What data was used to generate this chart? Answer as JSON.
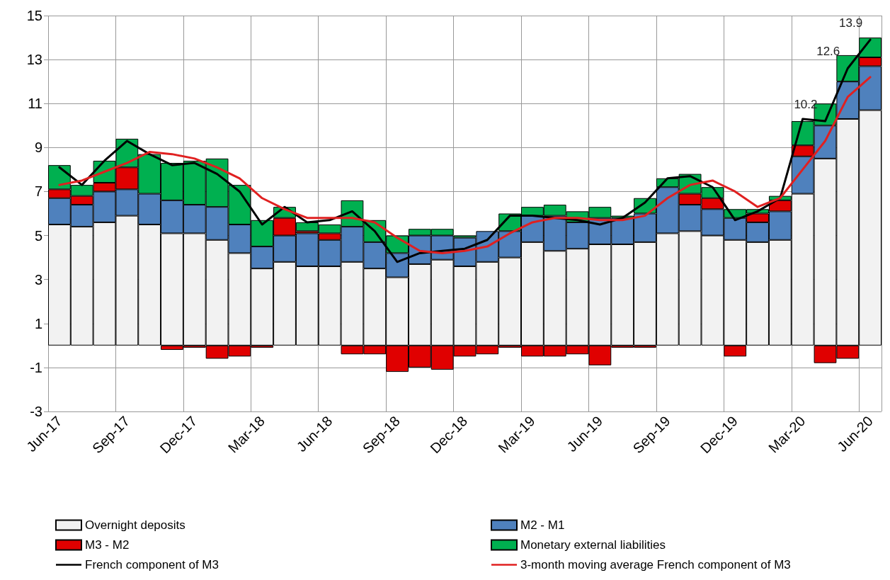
{
  "chart_data": {
    "type": "bar",
    "stacked": true,
    "categories": [
      "Jun-17",
      null,
      null,
      "Sep-17",
      null,
      null,
      "Dec-17",
      null,
      null,
      "Mar-18",
      null,
      null,
      "Jun-18",
      null,
      null,
      "Sep-18",
      null,
      null,
      "Dec-18",
      null,
      null,
      "Mar-19",
      null,
      null,
      "Jun-19",
      null,
      null,
      "Sep-19",
      null,
      null,
      "Dec-19",
      null,
      null,
      "Mar-20",
      null,
      null,
      "Jun-20"
    ],
    "series": [
      {
        "name": "Overnight deposits",
        "color": "#f2f2f2",
        "values": [
          5.5,
          5.4,
          5.6,
          5.9,
          5.5,
          5.1,
          5.1,
          4.8,
          4.2,
          3.5,
          3.8,
          3.6,
          3.6,
          3.8,
          3.5,
          3.1,
          3.7,
          3.9,
          3.6,
          3.8,
          4.0,
          4.7,
          4.3,
          4.4,
          4.6,
          4.6,
          4.7,
          5.1,
          5.2,
          5.0,
          4.8,
          4.7,
          4.8,
          6.9,
          8.5,
          10.3,
          10.7
        ]
      },
      {
        "name": "M2 - M1",
        "color": "#4f81bd",
        "values": [
          1.2,
          1.0,
          1.4,
          1.2,
          1.4,
          1.5,
          1.3,
          1.5,
          1.3,
          1.0,
          1.2,
          1.5,
          1.2,
          1.6,
          1.2,
          1.1,
          1.3,
          1.1,
          1.3,
          1.4,
          1.2,
          1.2,
          1.6,
          1.2,
          1.2,
          1.2,
          1.3,
          2.1,
          1.2,
          1.2,
          1.0,
          0.9,
          1.3,
          1.7,
          1.5,
          1.7,
          2.0
        ]
      },
      {
        "name": "M3 - M2",
        "color": "#e00000",
        "values": [
          0.4,
          0.4,
          0.4,
          1.0,
          0,
          -0.2,
          -0.1,
          -0.6,
          -0.5,
          -0.1,
          0.8,
          0.1,
          0.3,
          -0.4,
          -0.4,
          -1.2,
          -1.0,
          -1.1,
          -0.5,
          -0.4,
          -0.1,
          -0.5,
          -0.5,
          -0.4,
          -0.9,
          -0.1,
          -0.1,
          0,
          0.5,
          0.5,
          -0.5,
          0.4,
          0.5,
          0.5,
          -0.8,
          -0.6,
          0.4
        ]
      },
      {
        "name": "Monetary external liabilities",
        "color": "#00b050",
        "values": [
          1.1,
          0.5,
          1.0,
          1.3,
          1.8,
          1.7,
          2.0,
          2.2,
          1.8,
          1.2,
          0.5,
          0.4,
          0.4,
          1.2,
          1.0,
          0.8,
          0.3,
          0.3,
          0.1,
          0,
          0.8,
          0.4,
          0.5,
          0.5,
          0.5,
          0.1,
          0.7,
          0.4,
          0.9,
          0.5,
          0.4,
          0.2,
          0.2,
          1.1,
          1.0,
          1.2,
          0.9
        ]
      },
      {
        "name": "French component of M3",
        "type": "line",
        "color": "#000000",
        "values": [
          8.1,
          7.3,
          8.4,
          9.3,
          8.7,
          8.2,
          8.3,
          7.8,
          7.0,
          5.5,
          6.3,
          5.6,
          5.7,
          6.1,
          5.2,
          3.8,
          4.2,
          4.3,
          4.4,
          4.8,
          5.9,
          5.9,
          5.8,
          5.7,
          5.5,
          5.8,
          6.5,
          7.6,
          7.7,
          7.2,
          5.7,
          6.1,
          6.7,
          10.3,
          10.2,
          12.6,
          13.9
        ],
        "value_labels": [
          null,
          null,
          null,
          null,
          null,
          null,
          null,
          null,
          null,
          null,
          null,
          null,
          null,
          null,
          null,
          null,
          null,
          null,
          null,
          null,
          null,
          null,
          null,
          null,
          null,
          null,
          null,
          null,
          null,
          null,
          null,
          null,
          null,
          null,
          "10.2",
          "12.6",
          "13.9"
        ]
      },
      {
        "name": "3-month moving average French component of M3",
        "type": "line",
        "color": "#e02020",
        "values": [
          7.3,
          7.5,
          7.9,
          8.3,
          8.8,
          8.7,
          8.5,
          8.1,
          7.6,
          6.7,
          6.2,
          5.8,
          5.8,
          5.8,
          5.6,
          4.9,
          4.3,
          4.2,
          4.3,
          4.5,
          5.1,
          5.6,
          5.8,
          5.8,
          5.7,
          5.7,
          5.9,
          6.7,
          7.3,
          7.5,
          7.0,
          6.3,
          6.7,
          8.0,
          9.3,
          11.3,
          12.2
        ]
      }
    ],
    "ylim": [
      -3,
      15
    ],
    "yticks": [
      -3,
      -1,
      1,
      3,
      5,
      7,
      9,
      11,
      13,
      15
    ],
    "grid": true,
    "legend": "bottom",
    "marker": "none",
    "line_style": "solid"
  }
}
